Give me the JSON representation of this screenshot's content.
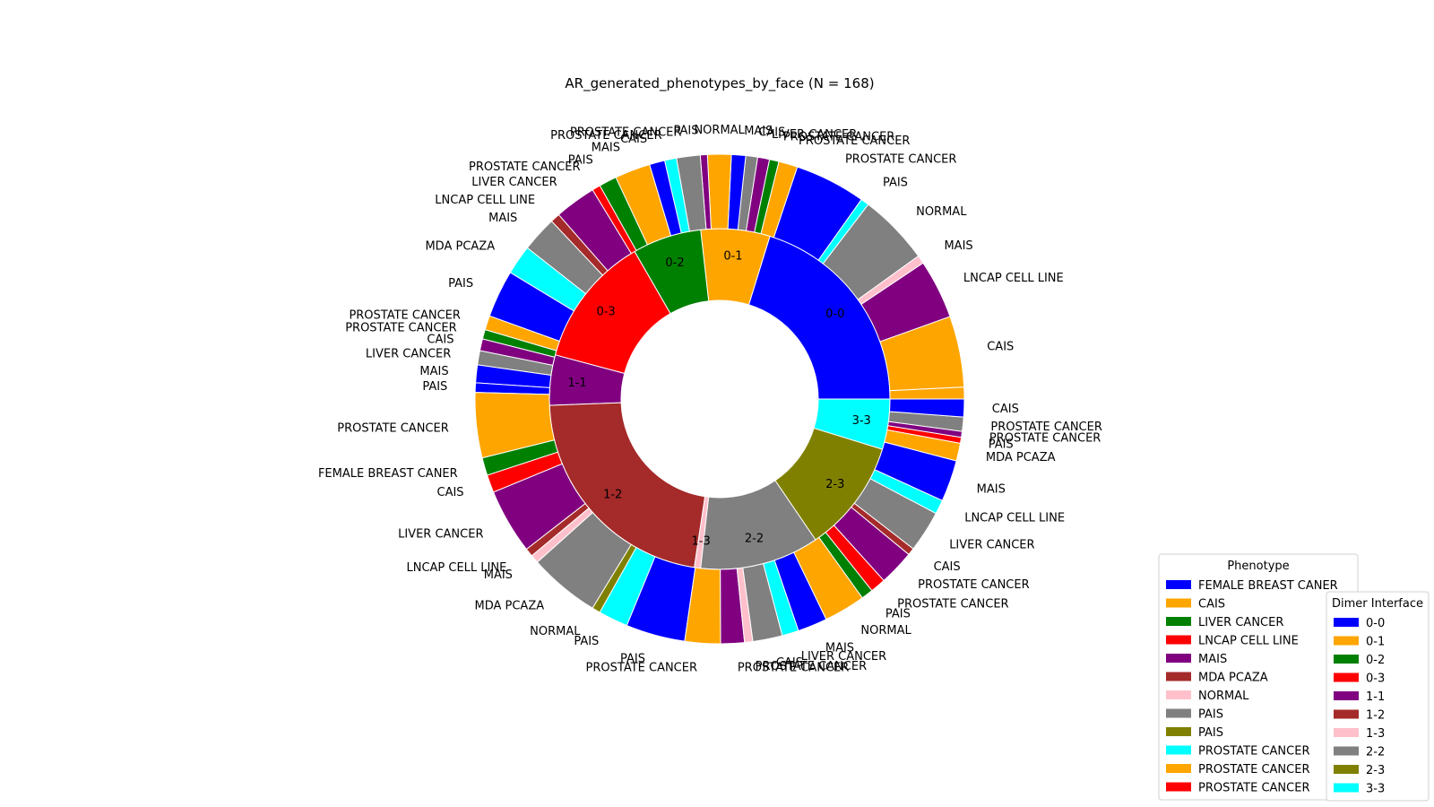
{
  "chart_data": {
    "type": "pie",
    "subtype": "nested-donut",
    "title": "AR_generated_phenotypes_by_face (N = 168)",
    "inner_ring": {
      "name": "Dimer Interface",
      "slices": [
        {
          "label": "0-0",
          "value": 34,
          "color": "#0000ff"
        },
        {
          "label": "0-1",
          "value": 11,
          "color": "#ffa500"
        },
        {
          "label": "0-2",
          "value": 11,
          "color": "#008000"
        },
        {
          "label": "0-3",
          "value": 21,
          "color": "#ff0000"
        },
        {
          "label": "1-1",
          "value": 8,
          "color": "#800080"
        },
        {
          "label": "1-2",
          "value": 37,
          "color": "#a52a2a"
        },
        {
          "label": "1-3",
          "value": 1,
          "color": "#ffc0cb"
        },
        {
          "label": "2-2",
          "value": 19,
          "color": "#808080"
        },
        {
          "label": "2-3",
          "value": 18,
          "color": "#808000"
        },
        {
          "label": "3-3",
          "value": 8,
          "color": "#00ffff"
        }
      ]
    },
    "outer_ring": {
      "name": "Phenotype",
      "slices": [
        {
          "label": "",
          "value": 1,
          "color": "#ffa500"
        },
        {
          "label": "CAIS",
          "value": 6,
          "color": "#ffa500"
        },
        {
          "label": "LNCAP CELL LINE",
          "value": 5,
          "color": "#800080"
        },
        {
          "label": "MAIS",
          "value": 0.7,
          "color": "#ffc0cb"
        },
        {
          "label": "NORMAL",
          "value": 6,
          "color": "#808080"
        },
        {
          "label": "PAIS",
          "value": 0.7,
          "color": "#00ffff"
        },
        {
          "label": "PROSTATE  CANCER",
          "value": 6,
          "color": "#0000ff"
        },
        {
          "label": "PROSTATE CANCER",
          "value": 1.6,
          "color": "#ffa500"
        },
        {
          "label": "PROSTATE CANCER",
          "value": 0.8,
          "color": "#008000"
        },
        {
          "label": "LIVER  CANCER",
          "value": 1,
          "color": "#800080"
        },
        {
          "label": "CAIS",
          "value": 1,
          "color": "#808080"
        },
        {
          "label": "MAIS",
          "value": 1.2,
          "color": "#0000ff"
        },
        {
          "label": "NORMAL",
          "value": 2,
          "color": "#ffa500"
        },
        {
          "label": "PAIS",
          "value": 0.6,
          "color": "#800080"
        },
        {
          "label": "PROSTATE CANCER",
          "value": 2,
          "color": "#808080"
        },
        {
          "label": "PROSTATE  CANCER",
          "value": 1,
          "color": "#00ffff"
        },
        {
          "label": "CAIS",
          "value": 1.3,
          "color": "#0000ff"
        },
        {
          "label": "MAIS",
          "value": 3,
          "color": "#ffa500"
        },
        {
          "label": "PAIS",
          "value": 1.5,
          "color": "#008000"
        },
        {
          "label": "PROSTATE CANCER",
          "value": 0.7,
          "color": "#ff0000"
        },
        {
          "label": "LIVER  CANCER",
          "value": 3.5,
          "color": "#800080"
        },
        {
          "label": "LNCAP CELL LINE",
          "value": 0.8,
          "color": "#a52a2a"
        },
        {
          "label": "MAIS",
          "value": 3,
          "color": "#808080"
        },
        {
          "label": "MDA PCAZA",
          "value": 2.5,
          "color": "#00ffff"
        },
        {
          "label": "PAIS",
          "value": 4,
          "color": "#0000ff"
        },
        {
          "label": "PROSTATE  CANCER",
          "value": 1.2,
          "color": "#ffa500"
        },
        {
          "label": "PROSTATE CANCER",
          "value": 0.8,
          "color": "#008000"
        },
        {
          "label": "CAIS",
          "value": 1,
          "color": "#800080"
        },
        {
          "label": "LIVER  CANCER",
          "value": 1.2,
          "color": "#808080"
        },
        {
          "label": "MAIS",
          "value": 1.5,
          "color": "#0000ff"
        },
        {
          "label": "PAIS",
          "value": 0.8,
          "color": "#0000ff"
        },
        {
          "label": "PROSTATE CANCER",
          "value": 5.5,
          "color": "#ffa500"
        },
        {
          "label": "FEMALE BREAST  CANER",
          "value": 1.5,
          "color": "#008000"
        },
        {
          "label": "CAIS",
          "value": 1.5,
          "color": "#ff0000"
        },
        {
          "label": "LIVER  CANCER",
          "value": 5.5,
          "color": "#800080"
        },
        {
          "label": "LNCAP CELL LINE",
          "value": 0.7,
          "color": "#a52a2a"
        },
        {
          "label": "MAIS",
          "value": 0.7,
          "color": "#ffc0cb"
        },
        {
          "label": "MDA PCAZA",
          "value": 6,
          "color": "#808080"
        },
        {
          "label": "NORMAL",
          "value": 0.7,
          "color": "#808000"
        },
        {
          "label": "PAIS",
          "value": 2.5,
          "color": "#00ffff"
        },
        {
          "label": "PAIS",
          "value": 5,
          "color": "#0000ff"
        },
        {
          "label": "PROSTATE  CANCER",
          "value": 3,
          "color": "#ffa500"
        },
        {
          "label": "PROSTATE CANCER",
          "value": 2,
          "color": "#800080"
        },
        {
          "label": "PROSTATE CANCER",
          "value": 0.7,
          "color": "#ffc0cb"
        },
        {
          "label": "CAIS",
          "value": 2.5,
          "color": "#808080"
        },
        {
          "label": "LIVER  CANCER",
          "value": 1.4,
          "color": "#00ffff"
        },
        {
          "label": "MAIS",
          "value": 2.5,
          "color": "#0000ff"
        },
        {
          "label": "NORMAL",
          "value": 3.5,
          "color": "#ffa500"
        },
        {
          "label": "PAIS",
          "value": 1,
          "color": "#008000"
        },
        {
          "label": "PROSTATE  CANCER",
          "value": 1.3,
          "color": "#ff0000"
        },
        {
          "label": "PROSTATE CANCER",
          "value": 3,
          "color": "#800080"
        },
        {
          "label": "CAIS",
          "value": 0.6,
          "color": "#a52a2a"
        },
        {
          "label": "LIVER  CANCER",
          "value": 3.5,
          "color": "#808080"
        },
        {
          "label": "LNCAP CELL LINE",
          "value": 1.2,
          "color": "#00ffff"
        },
        {
          "label": "MAIS",
          "value": 3.5,
          "color": "#0000ff"
        },
        {
          "label": "MDA PCAZA",
          "value": 1.5,
          "color": "#ffa500"
        },
        {
          "label": "PAIS",
          "value": 0.5,
          "color": "#ff0000"
        },
        {
          "label": "PROSTATE  CANCER",
          "value": 0.5,
          "color": "#800080"
        },
        {
          "label": "PROSTATE CANCER",
          "value": 1.2,
          "color": "#808080"
        },
        {
          "label": "CAIS",
          "value": 1.5,
          "color": "#0000ff"
        }
      ]
    },
    "outer_labels": [
      {
        "text": "PROSTATE CANCER",
        "side": "right",
        "angle": 0
      },
      {
        "text": "PROSTATE CANCER",
        "side": "right",
        "angle": -8
      },
      {
        "text": "PROSTATE  CANCER",
        "side": "right",
        "angle": -13
      },
      {
        "text": "PAIS",
        "side": "right",
        "angle": -20
      },
      {
        "text": "MAIS",
        "side": "right",
        "angle": -27
      },
      {
        "text": "LNCAP CELL LINE",
        "side": "right",
        "angle": -33
      },
      {
        "text": "CAIS",
        "side": "right",
        "angle": -39
      },
      {
        "text": "PROSTATE CANCER",
        "side": "right",
        "angle": -44
      },
      {
        "text": "PROSTATE CANCER",
        "side": "right",
        "angle": -52
      },
      {
        "text": "PROSTATE  CANCER",
        "side": "right",
        "angle": -62
      },
      {
        "text": "PAIS",
        "side": "right",
        "angle": -76
      },
      {
        "text": "MDA PCAZA",
        "side": "right",
        "angle": -86
      },
      {
        "text": "MAIS",
        "side": "right",
        "angle": -96
      },
      {
        "text": "LNCAP CELL LINE",
        "side": "right",
        "angle": -106
      },
      {
        "text": "LIVER  CANCER",
        "side": "right",
        "angle": -113
      },
      {
        "text": "CAIS",
        "side": "right",
        "angle": -124
      },
      {
        "text": "PROSTATE CANCER",
        "side": "right",
        "angle": -131
      },
      {
        "text": "PROSTATE  CANCER",
        "side": "right",
        "angle": -137
      },
      {
        "text": "PAIS",
        "side": "left",
        "angle": -146
      },
      {
        "text": "NORMAL",
        "side": "left",
        "angle": -154
      },
      {
        "text": "MAIS",
        "side": "left",
        "angle": -161
      },
      {
        "text": "CAIS",
        "side": "left",
        "angle": -165
      },
      {
        "text": "LIVER  CANCER",
        "side": "left",
        "angle": -168
      },
      {
        "text": "PROSTATE CANCER",
        "side": "left",
        "angle": -176
      },
      {
        "text": "PROSTATE CANCER",
        "side": "left",
        "angle": -184
      }
    ],
    "legends": [
      {
        "title": "Phenotype",
        "entries": [
          {
            "label": " FEMALE BREAST  CANER",
            "color": "#0000ff"
          },
          {
            "label": "CAIS",
            "color": "#ffa500"
          },
          {
            "label": "LIVER  CANCER",
            "color": "#008000"
          },
          {
            "label": "LNCAP CELL LINE",
            "color": "#ff0000"
          },
          {
            "label": "MAIS",
            "color": "#800080"
          },
          {
            "label": "MDA PCAZA",
            "color": "#a52a2a"
          },
          {
            "label": "NORMAL",
            "color": "#ffc0cb"
          },
          {
            "label": "PAIS",
            "color": "#808080"
          },
          {
            "label": "PAIS",
            "color": "#808000"
          },
          {
            "label": "PROSTATE  CANCER",
            "color": "#00ffff"
          },
          {
            "label": "PROSTATE CANCER",
            "color": "#ffa500"
          },
          {
            "label": "PROSTATE CANCER",
            "color": "#ff0000"
          }
        ]
      },
      {
        "title": "Dimer Interface",
        "entries": [
          {
            "label": "0-0",
            "color": "#0000ff"
          },
          {
            "label": "0-1",
            "color": "#ffa500"
          },
          {
            "label": "0-2",
            "color": "#008000"
          },
          {
            "label": "0-3",
            "color": "#ff0000"
          },
          {
            "label": "1-1",
            "color": "#800080"
          },
          {
            "label": "1-2",
            "color": "#a52a2a"
          },
          {
            "label": "1-3",
            "color": "#ffc0cb"
          },
          {
            "label": "2-2",
            "color": "#808080"
          },
          {
            "label": "2-3",
            "color": "#808000"
          },
          {
            "label": "3-3",
            "color": "#00ffff"
          }
        ]
      }
    ]
  }
}
